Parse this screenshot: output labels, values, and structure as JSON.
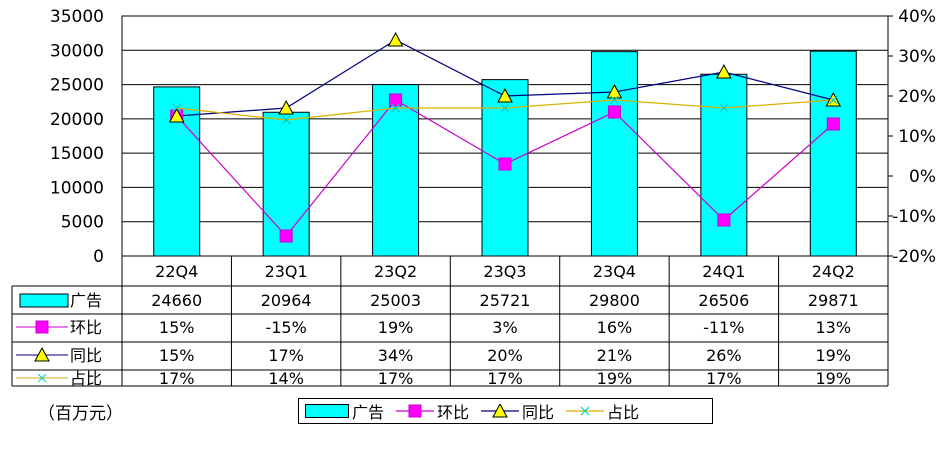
{
  "chart_data": {
    "type": "bar",
    "categories": [
      "22Q4",
      "23Q1",
      "23Q2",
      "23Q3",
      "23Q4",
      "24Q1",
      "24Q2"
    ],
    "y_left": {
      "ticks": [
        "35000",
        "30000",
        "25000",
        "20000",
        "15000",
        "10000",
        "5000",
        "0"
      ],
      "range": [
        0,
        35000
      ]
    },
    "y_right": {
      "ticks": [
        "40%",
        "30%",
        "20%",
        "10%",
        "0%",
        "-10%",
        "-20%"
      ],
      "range": [
        -20,
        40
      ]
    },
    "series": [
      {
        "name": "广告",
        "kind": "bar",
        "axis": "left",
        "color": "#00ffff",
        "values": [
          24660,
          20964,
          25003,
          25721,
          29800,
          26506,
          29871
        ],
        "labels": [
          "24660",
          "20964",
          "25003",
          "25721",
          "29800",
          "26506",
          "29871"
        ]
      },
      {
        "name": "环比",
        "kind": "line",
        "axis": "right",
        "color": "#cc00cc",
        "marker": "square",
        "values": [
          15,
          -15,
          19,
          3,
          16,
          -11,
          13
        ],
        "labels": [
          "15%",
          "-15%",
          "19%",
          "3%",
          "16%",
          "-11%",
          "13%"
        ]
      },
      {
        "name": "同比",
        "kind": "line",
        "axis": "right",
        "color": "#000080",
        "marker": "triangle",
        "values": [
          15,
          17,
          34,
          20,
          21,
          26,
          19
        ],
        "labels": [
          "15%",
          "17%",
          "34%",
          "20%",
          "21%",
          "26%",
          "19%"
        ]
      },
      {
        "name": "占比",
        "kind": "line",
        "axis": "right",
        "color": "#d9b000",
        "marker": "x",
        "values": [
          17,
          14,
          17,
          17,
          19,
          17,
          19
        ],
        "labels": [
          "17%",
          "14%",
          "17%",
          "17%",
          "19%",
          "17%",
          "19%"
        ]
      }
    ],
    "grid": true,
    "legend_position": "bottom"
  },
  "unit_label": "（百万元）"
}
